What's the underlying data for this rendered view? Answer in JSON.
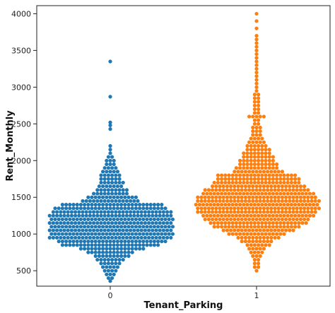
{
  "chart_data": {
    "type": "scatter",
    "subtype": "swarm",
    "title": "",
    "xlabel": "Tenant_Parking",
    "ylabel": "Rent_Monthly",
    "categories": [
      "0",
      "1"
    ],
    "ylim": [
      290,
      4110
    ],
    "yticks": [
      500,
      1000,
      1500,
      2000,
      2500,
      3000,
      3500,
      4000
    ],
    "grid": false,
    "legend": "none",
    "series": [
      {
        "category": "0",
        "color": "#1f77b4",
        "profile": [
          [
            360,
            1
          ],
          [
            400,
            2
          ],
          [
            450,
            3
          ],
          [
            500,
            4
          ],
          [
            550,
            5
          ],
          [
            600,
            6
          ],
          [
            650,
            8
          ],
          [
            700,
            10
          ],
          [
            750,
            13
          ],
          [
            800,
            18
          ],
          [
            850,
            27
          ],
          [
            900,
            30
          ],
          [
            950,
            34
          ],
          [
            1000,
            34
          ],
          [
            1050,
            34
          ],
          [
            1100,
            34
          ],
          [
            1150,
            34
          ],
          [
            1200,
            34
          ],
          [
            1250,
            34
          ],
          [
            1300,
            33
          ],
          [
            1350,
            31
          ],
          [
            1400,
            28
          ],
          [
            1450,
            16
          ],
          [
            1500,
            14
          ],
          [
            1550,
            10
          ],
          [
            1600,
            9
          ],
          [
            1650,
            7
          ],
          [
            1700,
            7
          ],
          [
            1750,
            6
          ],
          [
            1800,
            6
          ],
          [
            1850,
            5
          ],
          [
            1900,
            4
          ],
          [
            1950,
            3
          ],
          [
            2000,
            3
          ],
          [
            2050,
            2
          ],
          [
            2100,
            1
          ],
          [
            2150,
            1
          ],
          [
            2200,
            1
          ]
        ],
        "outliers": [
          2430,
          2480,
          2520,
          2870,
          3350
        ]
      },
      {
        "category": "1",
        "color": "#ff7f0e",
        "profile": [
          [
            500,
            1
          ],
          [
            550,
            2
          ],
          [
            600,
            2
          ],
          [
            650,
            2
          ],
          [
            700,
            3
          ],
          [
            750,
            4
          ],
          [
            800,
            5
          ],
          [
            850,
            7
          ],
          [
            900,
            9
          ],
          [
            950,
            12
          ],
          [
            1000,
            16
          ],
          [
            1050,
            20
          ],
          [
            1100,
            24
          ],
          [
            1150,
            27
          ],
          [
            1200,
            29
          ],
          [
            1250,
            31
          ],
          [
            1300,
            33
          ],
          [
            1350,
            34
          ],
          [
            1400,
            34
          ],
          [
            1450,
            34
          ],
          [
            1500,
            33
          ],
          [
            1550,
            31
          ],
          [
            1600,
            29
          ],
          [
            1650,
            26
          ],
          [
            1700,
            24
          ],
          [
            1750,
            23
          ],
          [
            1800,
            22
          ],
          [
            1850,
            14
          ],
          [
            1900,
            12
          ],
          [
            1950,
            11
          ],
          [
            2000,
            10
          ],
          [
            2050,
            9
          ],
          [
            2100,
            8
          ],
          [
            2150,
            7
          ],
          [
            2200,
            6
          ],
          [
            2250,
            5
          ],
          [
            2300,
            4
          ],
          [
            2350,
            3
          ],
          [
            2400,
            3
          ],
          [
            2450,
            3
          ],
          [
            2500,
            2
          ],
          [
            2550,
            2
          ],
          [
            2600,
            5
          ],
          [
            2650,
            2
          ],
          [
            2700,
            2
          ],
          [
            2750,
            2
          ],
          [
            2800,
            2
          ],
          [
            2850,
            2
          ],
          [
            2900,
            2
          ],
          [
            2950,
            1
          ],
          [
            3000,
            1
          ],
          [
            3050,
            1
          ],
          [
            3100,
            1
          ],
          [
            3150,
            1
          ],
          [
            3200,
            1
          ],
          [
            3250,
            1
          ],
          [
            3300,
            1
          ],
          [
            3350,
            1
          ],
          [
            3400,
            1
          ],
          [
            3450,
            1
          ],
          [
            3500,
            1
          ],
          [
            3550,
            1
          ],
          [
            3600,
            1
          ],
          [
            3650,
            1
          ],
          [
            3700,
            1
          ],
          [
            3800,
            1
          ],
          [
            3900,
            1
          ],
          [
            4000,
            1
          ]
        ],
        "outliers": []
      }
    ]
  }
}
